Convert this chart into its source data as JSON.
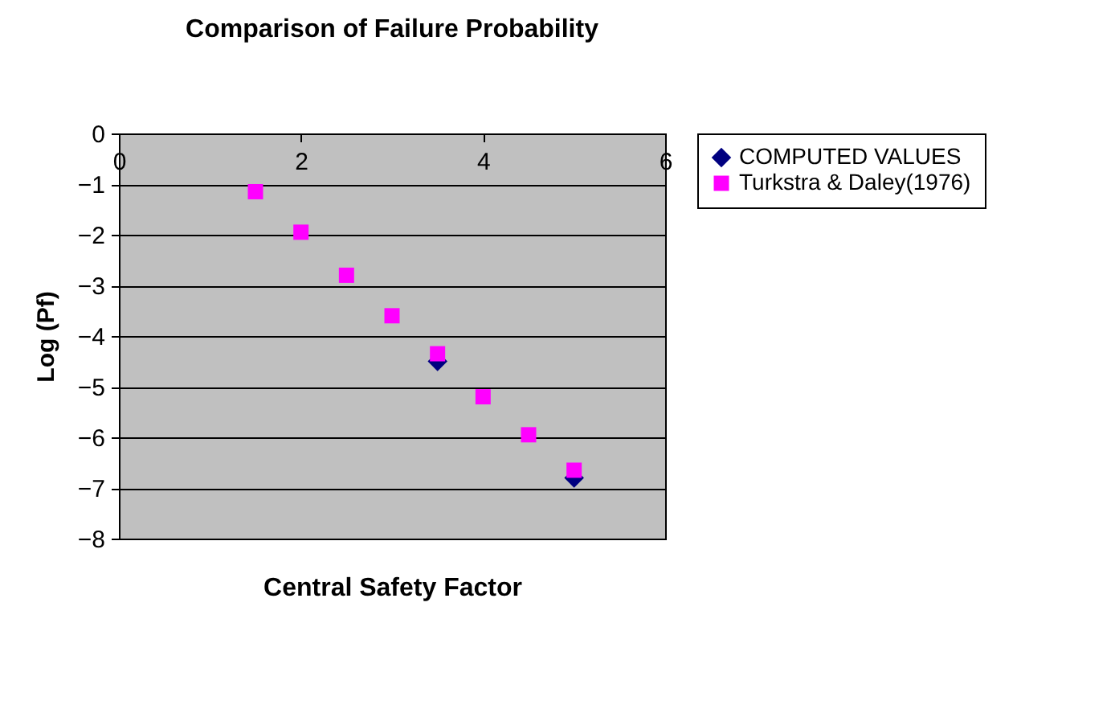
{
  "chart_data": {
    "type": "scatter",
    "title": "Comparison of Failure Probability",
    "xlabel": "Central Safety Factor",
    "ylabel": "Log (Pf)",
    "x": [
      1.5,
      2,
      2.5,
      3,
      3.5,
      4,
      4.5,
      5
    ],
    "series": [
      {
        "name": "COMPUTED VALUES",
        "color": "#000080",
        "marker": "diamond",
        "values": [
          null,
          null,
          null,
          null,
          -4.5,
          null,
          null,
          -6.8
        ]
      },
      {
        "name": "Turkstra & Daley(1976)",
        "color": "#ff00ff",
        "marker": "square",
        "values": [
          -1.15,
          -1.95,
          -2.8,
          -3.6,
          -4.35,
          -5.2,
          -5.95,
          -6.65
        ]
      }
    ],
    "xlim": [
      0,
      6
    ],
    "xticks": [
      0,
      2,
      4,
      6
    ],
    "ylim": [
      -8,
      0
    ],
    "yticks": [
      0,
      -1,
      -2,
      -3,
      -4,
      -5,
      -6,
      -7,
      -8
    ],
    "grid": "y",
    "legend": "right"
  }
}
